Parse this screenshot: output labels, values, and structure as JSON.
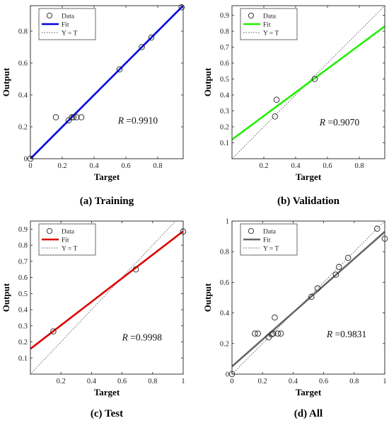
{
  "chart_data": [
    {
      "type": "scatter",
      "caption": "(a) Training",
      "xlabel": "Target",
      "ylabel": "Output",
      "xlim": [
        0,
        0.96
      ],
      "ylim": [
        0,
        0.96
      ],
      "xticks": [
        0,
        0.2,
        0.4,
        0.6,
        0.8
      ],
      "xtick_labels": [
        "0",
        "0.2",
        "0.4",
        "0.6",
        "0.8"
      ],
      "yticks": [
        0,
        0.2,
        0.4,
        0.6,
        0.8
      ],
      "ytick_labels": [
        "0",
        "0.2",
        "0.4",
        "0.6",
        "0.8"
      ],
      "fit_color": "#0000dd",
      "fit_line": {
        "slope": 1.0,
        "intercept": 0.0
      },
      "r_label": "R",
      "r_value": "=0.9910",
      "r_pos": [
        0.55,
        0.22
      ],
      "legend": [
        "Data",
        "Fit",
        "Y = T"
      ],
      "points": [
        [
          0.0,
          0.0
        ],
        [
          0.16,
          0.26
        ],
        [
          0.24,
          0.24
        ],
        [
          0.26,
          0.26
        ],
        [
          0.27,
          0.26
        ],
        [
          0.29,
          0.26
        ],
        [
          0.32,
          0.26
        ],
        [
          0.56,
          0.56
        ],
        [
          0.7,
          0.7
        ],
        [
          0.76,
          0.76
        ],
        [
          0.95,
          0.95
        ]
      ]
    },
    {
      "type": "scatter",
      "caption": "(b) Validation",
      "xlabel": "Target",
      "ylabel": "Output",
      "xlim": [
        0,
        0.96
      ],
      "ylim": [
        0,
        0.96
      ],
      "xticks": [
        0.2,
        0.4,
        0.6,
        0.8
      ],
      "xtick_labels": [
        "0.2",
        "0.4",
        "0.6",
        "0.8"
      ],
      "yticks": [
        0.1,
        0.2,
        0.3,
        0.4,
        0.5,
        0.6,
        0.7,
        0.8,
        0.9
      ],
      "ytick_labels": [
        "0.1",
        "0.2",
        "0.3",
        "0.4",
        "0.5",
        "0.6",
        "0.7",
        "0.8",
        "0.9"
      ],
      "fit_color": "#22ee00",
      "fit_line": {
        "slope": 0.74,
        "intercept": 0.12
      },
      "r_label": "R",
      "r_value": "=0.9070",
      "r_pos": [
        0.55,
        0.21
      ],
      "legend": [
        "Data",
        "Fit",
        "Y = T"
      ],
      "points": [
        [
          0.27,
          0.265
        ],
        [
          0.28,
          0.37
        ],
        [
          0.52,
          0.5
        ]
      ]
    },
    {
      "type": "scatter",
      "caption": "(c) Test",
      "xlabel": "Target",
      "ylabel": "Output",
      "xlim": [
        0,
        1.0
      ],
      "ylim": [
        0,
        0.95
      ],
      "xticks": [
        0.2,
        0.4,
        0.6,
        0.8,
        1
      ],
      "xtick_labels": [
        "0.2",
        "0.4",
        "0.6",
        "0.8",
        "1"
      ],
      "yticks": [
        0.1,
        0.2,
        0.3,
        0.4,
        0.5,
        0.6,
        0.7,
        0.8,
        0.9
      ],
      "ytick_labels": [
        "0.1",
        "0.2",
        "0.3",
        "0.4",
        "0.5",
        "0.6",
        "0.7",
        "0.8",
        "0.9"
      ],
      "fit_color": "#dd0000",
      "fit_line": {
        "slope": 0.73,
        "intercept": 0.157
      },
      "r_label": "R",
      "r_value": "=0.9998",
      "r_pos": [
        0.6,
        0.21
      ],
      "legend": [
        "Data",
        "Fit",
        "Y = T"
      ],
      "points": [
        [
          0.15,
          0.265
        ],
        [
          0.69,
          0.65
        ],
        [
          1.0,
          0.885
        ]
      ]
    },
    {
      "type": "scatter",
      "caption": "(d) All",
      "xlabel": "Target",
      "ylabel": "Output",
      "xlim": [
        0,
        1.0
      ],
      "ylim": [
        0,
        1.0
      ],
      "xticks": [
        0,
        0.2,
        0.4,
        0.6,
        0.8,
        1
      ],
      "xtick_labels": [
        "0",
        "0.2",
        "0.4",
        "0.6",
        "0.8",
        "1"
      ],
      "yticks": [
        0,
        0.2,
        0.4,
        0.6,
        0.8,
        1
      ],
      "ytick_labels": [
        "0",
        "0.2",
        "0.4",
        "0.6",
        "0.8",
        "1"
      ],
      "fit_color": "#666666",
      "fit_line": {
        "slope": 0.88,
        "intercept": 0.05
      },
      "r_label": "R",
      "r_value": "=0.9831",
      "r_pos": [
        0.62,
        0.24
      ],
      "legend": [
        "Data",
        "Fit",
        "Y = T"
      ],
      "points": [
        [
          0.0,
          0.0
        ],
        [
          0.15,
          0.265
        ],
        [
          0.17,
          0.265
        ],
        [
          0.24,
          0.24
        ],
        [
          0.26,
          0.26
        ],
        [
          0.27,
          0.265
        ],
        [
          0.28,
          0.37
        ],
        [
          0.3,
          0.265
        ],
        [
          0.32,
          0.265
        ],
        [
          0.52,
          0.505
        ],
        [
          0.56,
          0.56
        ],
        [
          0.68,
          0.65
        ],
        [
          0.7,
          0.7
        ],
        [
          0.76,
          0.76
        ],
        [
          0.95,
          0.95
        ],
        [
          1.0,
          0.885
        ]
      ]
    }
  ]
}
